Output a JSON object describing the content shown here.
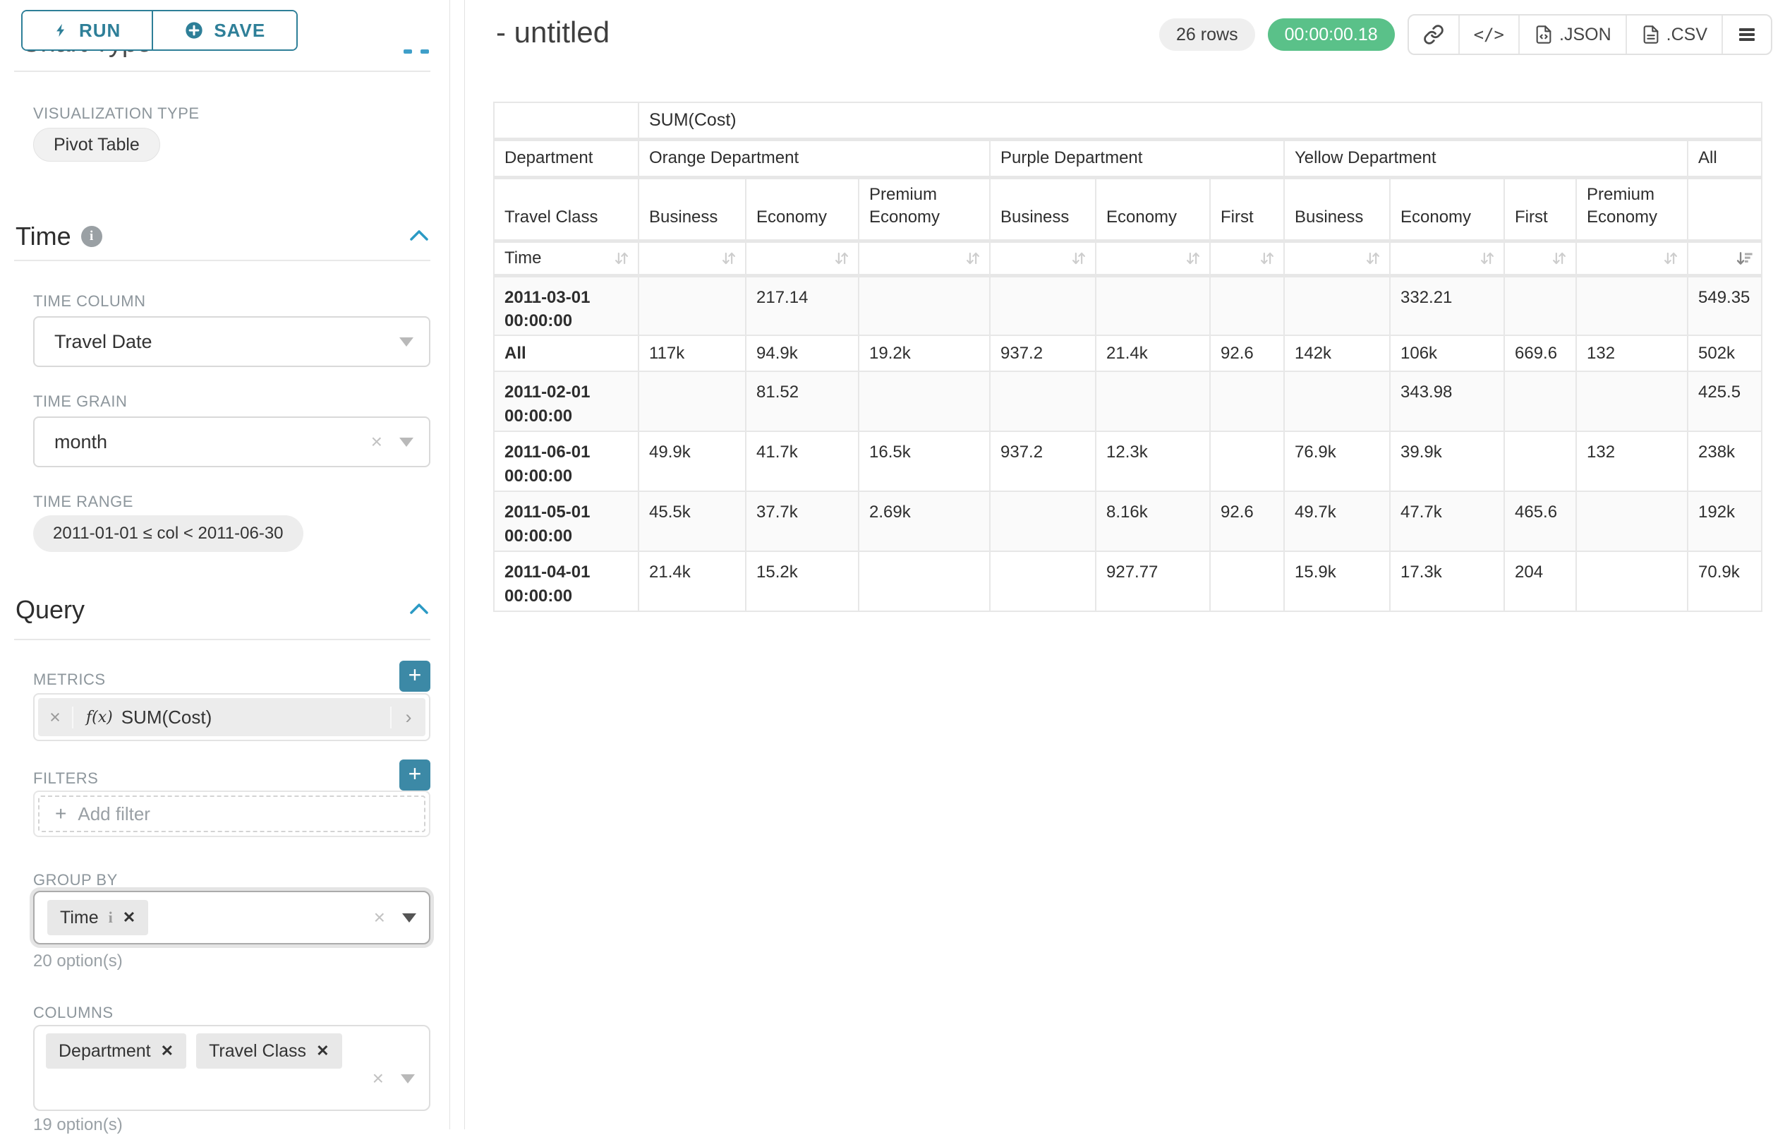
{
  "colors": {
    "accent": "#2e7f98",
    "success": "#5ac189"
  },
  "toolbar": {
    "run_label": "RUN",
    "save_label": "SAVE"
  },
  "left_panel": {
    "chart_type_heading": "Chart Type",
    "viz_type_label": "VISUALIZATION TYPE",
    "viz_type_value": "Pivot Table",
    "time": {
      "title": "Time",
      "time_column_label": "TIME COLUMN",
      "time_column_value": "Travel Date",
      "time_grain_label": "TIME GRAIN",
      "time_grain_value": "month",
      "time_range_label": "TIME RANGE",
      "time_range_value": "2011-01-01 ≤ col < 2011-06-30"
    },
    "query": {
      "title": "Query",
      "metrics_label": "METRICS",
      "metric_fx": "f(x)",
      "metric_value": "SUM(Cost)",
      "filters_label": "FILTERS",
      "add_filter_label": "Add filter",
      "group_by_label": "GROUP BY",
      "group_by_tags": [
        "Time"
      ],
      "group_by_options": "20 option(s)",
      "columns_label": "COLUMNS",
      "columns_tags": [
        "Department",
        "Travel Class"
      ],
      "columns_options": "19 option(s)"
    }
  },
  "header": {
    "title": "- untitled",
    "row_count": "26 rows",
    "timer": "00:00:00.18",
    "export_json": ".JSON",
    "export_csv": ".CSV"
  },
  "pivot": {
    "metric": "SUM(Cost)",
    "dept_label": "Department",
    "class_label": "Travel Class",
    "time_label": "Time",
    "groups": [
      {
        "label": "Orange Department",
        "classes": [
          "Business",
          "Economy",
          "Premium Economy"
        ]
      },
      {
        "label": "Purple Department",
        "classes": [
          "Business",
          "Economy",
          "First"
        ]
      },
      {
        "label": "Yellow Department",
        "classes": [
          "Business",
          "Economy",
          "First",
          "Premium Economy"
        ]
      }
    ],
    "all_label": "All",
    "rows": [
      {
        "label": "2011-03-01 00:00:00",
        "values": [
          "",
          "217.14",
          "",
          "",
          "",
          "",
          "",
          "332.21",
          "",
          "",
          "549.35"
        ]
      },
      {
        "label": "All",
        "values": [
          "117k",
          "94.9k",
          "19.2k",
          "937.2",
          "21.4k",
          "92.6",
          "142k",
          "106k",
          "669.6",
          "132",
          "502k"
        ]
      },
      {
        "label": "2011-02-01 00:00:00",
        "values": [
          "",
          "81.52",
          "",
          "",
          "",
          "",
          "",
          "343.98",
          "",
          "",
          "425.5"
        ]
      },
      {
        "label": "2011-06-01 00:00:00",
        "values": [
          "49.9k",
          "41.7k",
          "16.5k",
          "937.2",
          "12.3k",
          "",
          "76.9k",
          "39.9k",
          "",
          "132",
          "238k"
        ]
      },
      {
        "label": "2011-05-01 00:00:00",
        "values": [
          "45.5k",
          "37.7k",
          "2.69k",
          "",
          "8.16k",
          "92.6",
          "49.7k",
          "47.7k",
          "465.6",
          "",
          "192k"
        ]
      },
      {
        "label": "2011-04-01 00:00:00",
        "values": [
          "21.4k",
          "15.2k",
          "",
          "",
          "927.77",
          "",
          "15.9k",
          "17.3k",
          "204",
          "",
          "70.9k"
        ]
      }
    ]
  }
}
